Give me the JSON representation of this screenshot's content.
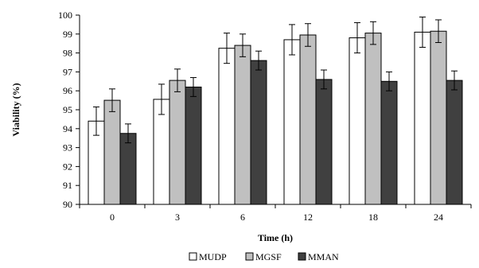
{
  "chart_data": {
    "type": "bar",
    "title": "",
    "xlabel": "Time (h)",
    "ylabel": "Viability (%)",
    "ylim": [
      90,
      100
    ],
    "yticks": [
      90,
      91,
      92,
      93,
      94,
      95,
      96,
      97,
      98,
      99,
      100
    ],
    "categories": [
      "0",
      "3",
      "6",
      "12",
      "18",
      "24"
    ],
    "series": [
      {
        "name": "MUDP",
        "color": "#ffffff",
        "values": [
          94.4,
          95.55,
          98.25,
          98.7,
          98.8,
          99.1
        ],
        "errors": [
          0.75,
          0.8,
          0.8,
          0.8,
          0.8,
          0.8
        ]
      },
      {
        "name": "MGSF",
        "color": "#c0c0c0",
        "values": [
          95.5,
          96.55,
          98.4,
          98.95,
          99.05,
          99.15
        ],
        "errors": [
          0.6,
          0.6,
          0.6,
          0.6,
          0.6,
          0.6
        ]
      },
      {
        "name": "MMAN",
        "color": "#404040",
        "values": [
          93.75,
          96.2,
          97.6,
          96.6,
          96.5,
          96.55
        ],
        "errors": [
          0.5,
          0.5,
          0.5,
          0.5,
          0.5,
          0.5
        ]
      }
    ],
    "grid": false,
    "legend": "bottom"
  }
}
